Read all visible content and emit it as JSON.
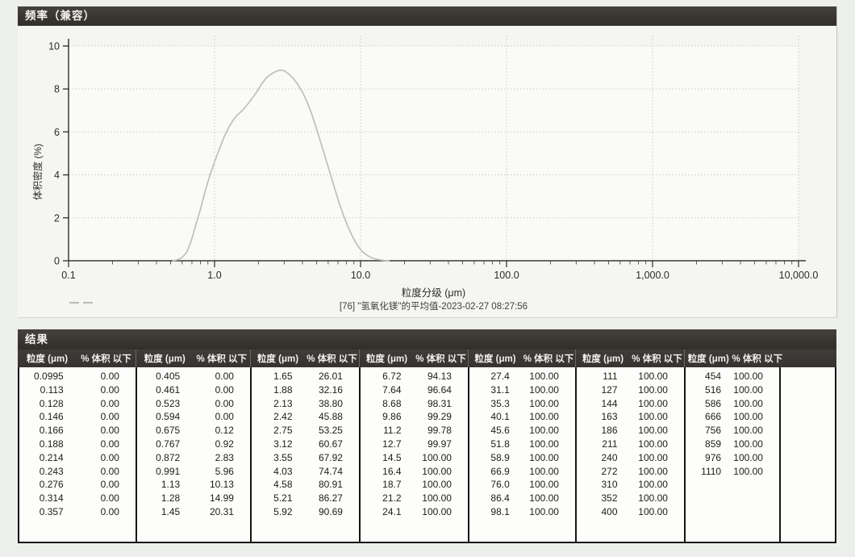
{
  "chart_panel": {
    "title": "频率（兼容）"
  },
  "chart_data": {
    "type": "line",
    "title": "频率（兼容）",
    "xlabel": "粒度分级 (μm)",
    "ylabel": "体积密度 (%)",
    "x_scale": "log",
    "xlim": [
      0.1,
      10000
    ],
    "ylim": [
      0,
      10
    ],
    "y_ticks": [
      0,
      2,
      4,
      6,
      8,
      10
    ],
    "x_tick_labels": [
      "0.1",
      "1.0",
      "10.0",
      "100.0",
      "1,000.0",
      "10,000.0"
    ],
    "grid": true,
    "legend_position": "bottom",
    "series": [
      {
        "name": "[76] \"氢氧化镁\"的平均值-2023-02-27 08:27:56",
        "color": "#bebebb",
        "peak": {
          "x": 2.9,
          "y": 8.9
        },
        "points": [
          [
            0.52,
            0
          ],
          [
            0.56,
            0.05
          ],
          [
            0.6,
            0.15
          ],
          [
            0.645,
            0.4
          ],
          [
            0.69,
            0.9
          ],
          [
            0.74,
            1.6
          ],
          [
            0.8,
            2.4
          ],
          [
            0.86,
            3.2
          ],
          [
            0.93,
            4.0
          ],
          [
            1.0,
            4.6
          ],
          [
            1.08,
            5.2
          ],
          [
            1.16,
            5.75
          ],
          [
            1.25,
            6.2
          ],
          [
            1.34,
            6.55
          ],
          [
            1.44,
            6.8
          ],
          [
            1.55,
            7.0
          ],
          [
            1.67,
            7.25
          ],
          [
            1.8,
            7.55
          ],
          [
            1.94,
            7.85
          ],
          [
            2.09,
            8.2
          ],
          [
            2.25,
            8.5
          ],
          [
            2.42,
            8.68
          ],
          [
            2.6,
            8.8
          ],
          [
            2.8,
            8.88
          ],
          [
            3.0,
            8.85
          ],
          [
            3.22,
            8.7
          ],
          [
            3.46,
            8.5
          ],
          [
            3.72,
            8.2
          ],
          [
            4.0,
            7.85
          ],
          [
            4.3,
            7.4
          ],
          [
            4.62,
            6.85
          ],
          [
            4.97,
            6.2
          ],
          [
            5.34,
            5.5
          ],
          [
            5.74,
            4.8
          ],
          [
            6.17,
            4.1
          ],
          [
            6.63,
            3.4
          ],
          [
            7.13,
            2.7
          ],
          [
            7.66,
            2.1
          ],
          [
            8.24,
            1.55
          ],
          [
            8.85,
            1.1
          ],
          [
            9.52,
            0.72
          ],
          [
            10.2,
            0.45
          ],
          [
            11.0,
            0.27
          ],
          [
            11.8,
            0.15
          ],
          [
            12.7,
            0.08
          ],
          [
            13.6,
            0.04
          ],
          [
            14.6,
            0.01
          ],
          [
            15.7,
            0
          ]
        ]
      }
    ]
  },
  "results_panel": {
    "title": "结果",
    "column_headers": {
      "size": "粒度 (μm)",
      "volume_under": "% 体积 以下"
    },
    "groups": [
      {
        "rows": [
          [
            "0.0995",
            "0.00"
          ],
          [
            "0.113",
            "0.00"
          ],
          [
            "0.128",
            "0.00"
          ],
          [
            "0.146",
            "0.00"
          ],
          [
            "0.166",
            "0.00"
          ],
          [
            "0.188",
            "0.00"
          ],
          [
            "0.214",
            "0.00"
          ],
          [
            "0.243",
            "0.00"
          ],
          [
            "0.276",
            "0.00"
          ],
          [
            "0.314",
            "0.00"
          ],
          [
            "0.357",
            "0.00"
          ]
        ]
      },
      {
        "rows": [
          [
            "0.405",
            "0.00"
          ],
          [
            "0.461",
            "0.00"
          ],
          [
            "0.523",
            "0.00"
          ],
          [
            "0.594",
            "0.00"
          ],
          [
            "0.675",
            "0.12"
          ],
          [
            "0.767",
            "0.92"
          ],
          [
            "0.872",
            "2.83"
          ],
          [
            "0.991",
            "5.96"
          ],
          [
            "1.13",
            "10.13"
          ],
          [
            "1.28",
            "14.99"
          ],
          [
            "1.45",
            "20.31"
          ]
        ]
      },
      {
        "rows": [
          [
            "1.65",
            "26.01"
          ],
          [
            "1.88",
            "32.16"
          ],
          [
            "2.13",
            "38.80"
          ],
          [
            "2.42",
            "45.88"
          ],
          [
            "2.75",
            "53.25"
          ],
          [
            "3.12",
            "60.67"
          ],
          [
            "3.55",
            "67.92"
          ],
          [
            "4.03",
            "74.74"
          ],
          [
            "4.58",
            "80.91"
          ],
          [
            "5.21",
            "86.27"
          ],
          [
            "5.92",
            "90.69"
          ]
        ]
      },
      {
        "rows": [
          [
            "6.72",
            "94.13"
          ],
          [
            "7.64",
            "96.64"
          ],
          [
            "8.68",
            "98.31"
          ],
          [
            "9.86",
            "99.29"
          ],
          [
            "11.2",
            "99.78"
          ],
          [
            "12.7",
            "99.97"
          ],
          [
            "14.5",
            "100.00"
          ],
          [
            "16.4",
            "100.00"
          ],
          [
            "18.7",
            "100.00"
          ],
          [
            "21.2",
            "100.00"
          ],
          [
            "24.1",
            "100.00"
          ]
        ]
      },
      {
        "rows": [
          [
            "27.4",
            "100.00"
          ],
          [
            "31.1",
            "100.00"
          ],
          [
            "35.3",
            "100.00"
          ],
          [
            "40.1",
            "100.00"
          ],
          [
            "45.6",
            "100.00"
          ],
          [
            "51.8",
            "100.00"
          ],
          [
            "58.9",
            "100.00"
          ],
          [
            "66.9",
            "100.00"
          ],
          [
            "76.0",
            "100.00"
          ],
          [
            "86.4",
            "100.00"
          ],
          [
            "98.1",
            "100.00"
          ]
        ]
      },
      {
        "rows": [
          [
            "111",
            "100.00"
          ],
          [
            "127",
            "100.00"
          ],
          [
            "144",
            "100.00"
          ],
          [
            "163",
            "100.00"
          ],
          [
            "186",
            "100.00"
          ],
          [
            "211",
            "100.00"
          ],
          [
            "240",
            "100.00"
          ],
          [
            "272",
            "100.00"
          ],
          [
            "310",
            "100.00"
          ],
          [
            "352",
            "100.00"
          ],
          [
            "400",
            "100.00"
          ]
        ]
      },
      {
        "rows": [
          [
            "454",
            "100.00"
          ],
          [
            "516",
            "100.00"
          ],
          [
            "586",
            "100.00"
          ],
          [
            "666",
            "100.00"
          ],
          [
            "756",
            "100.00"
          ],
          [
            "859",
            "100.00"
          ],
          [
            "976",
            "100.00"
          ],
          [
            "1110",
            "100.00"
          ]
        ]
      }
    ]
  }
}
